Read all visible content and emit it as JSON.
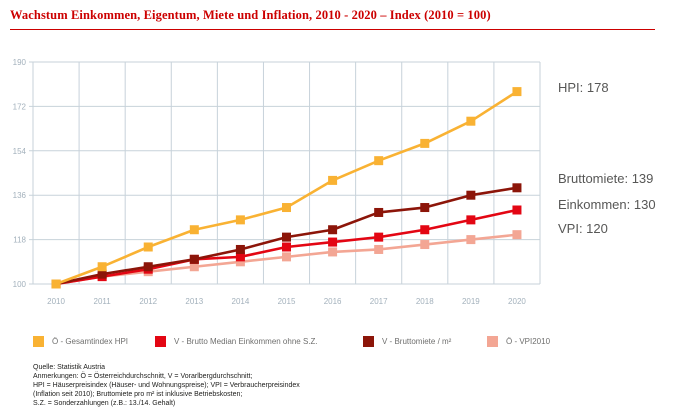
{
  "title": "Wachstum Einkommen, Eigentum, Miete und Inflation, 2010 - 2020 – Index (2010 = 100)",
  "colors": {
    "title_red": "#cc0000",
    "grid": "#c7d2da",
    "tick_label": "#a3b1bc",
    "annotation_text": "#575756",
    "footnote_text": "#1d1d1b"
  },
  "chart_data": {
    "type": "line",
    "x": [
      2010,
      2011,
      2012,
      2013,
      2014,
      2015,
      2016,
      2017,
      2018,
      2019,
      2020
    ],
    "series": [
      {
        "id": "hpi",
        "name": "Ö - Gesamtindex HPI",
        "color": "#f9b233",
        "values": [
          100,
          107,
          115,
          122,
          126,
          131,
          142,
          150,
          157,
          166,
          178
        ]
      },
      {
        "id": "einkommen",
        "name": "V - Brutto Median Einkommen ohne S.Z.",
        "color": "#e30613",
        "values": [
          100,
          103,
          106,
          110,
          111,
          115,
          117,
          119,
          122,
          126,
          130
        ]
      },
      {
        "id": "bruttomiete",
        "name": "V - Bruttomiete / m²",
        "color": "#8c1509",
        "values": [
          100,
          104,
          107,
          110,
          114,
          119,
          122,
          129,
          131,
          136,
          139
        ]
      },
      {
        "id": "vpi",
        "name": "Ö - VPI2010",
        "color": "#f3a694",
        "values": [
          100,
          103,
          105,
          107,
          109,
          111,
          113,
          114,
          116,
          118,
          120
        ]
      }
    ],
    "draw_order": [
      "vpi",
      "einkommen",
      "bruttomiete",
      "hpi"
    ],
    "ylim": [
      100,
      190
    ],
    "yticks": [
      100,
      118,
      136,
      154,
      172,
      190
    ],
    "grid": true,
    "legend_position": "bottom",
    "title": "Wachstum Einkommen, Eigentum, Miete und Inflation, 2010 - 2020 – Index (2010 = 100)",
    "xlabel": "",
    "ylabel": ""
  },
  "annotations": [
    {
      "label": "HPI: 178"
    },
    {
      "label": "Bruttomiete: 139"
    },
    {
      "label": "Einkommen: 130"
    },
    {
      "label": "VPI: 120"
    }
  ],
  "footnotes": [
    "Quelle: Statistik Austria",
    "Anmerkungen: Ö = Österreichdurchschnitt, V = Vorarlbergdurchschnitt;",
    "HPI = Häuserpreisindex (Häuser- und Wohnungspreise); VPI = Verbraucherpreisindex",
    "(Inflation seit 2010); Bruttomiete pro m² ist inklusive Betriebskosten;",
    "S.Z. = Sonderzahlungen (z.B.: 13./14. Gehalt)"
  ]
}
